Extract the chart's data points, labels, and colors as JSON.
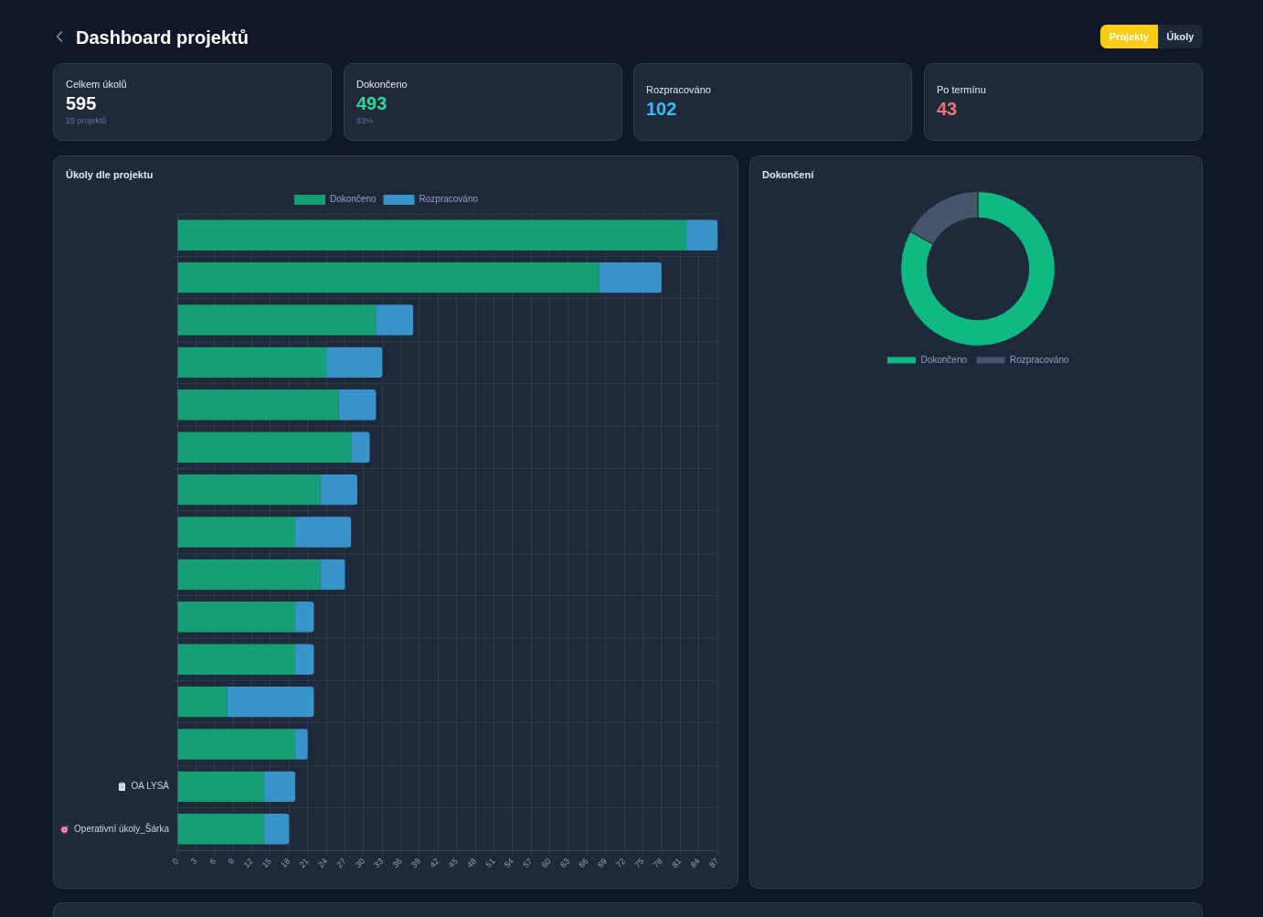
{
  "chart_data": [
    {
      "type": "other",
      "title": "Dashboard projektů",
      "annotations": [
        "Projekty",
        "Úkoly"
      ]
    },
    {
      "type": "other",
      "title": "Celkem úkolů",
      "annotations": [
        "595",
        "25 projektů"
      ]
    },
    {
      "type": "other",
      "title": "Dokončeno",
      "annotations": [
        "493",
        "83%"
      ],
      "color": "#34d399"
    },
    {
      "type": "other",
      "title": "Rozpracováno",
      "annotations": [
        "102"
      ],
      "color": "#38bdf8"
    },
    {
      "type": "other",
      "title": "Po termínu",
      "annotations": [
        "43"
      ],
      "color": "#f87171"
    },
    {
      "type": "bar",
      "title": "Úkoly dle projektu",
      "orientation": "horizontal",
      "stacked": true,
      "categories": [
        null,
        null,
        null,
        null,
        null,
        null,
        null,
        null,
        null,
        null,
        null,
        null,
        null,
        "OA LYSÁ",
        "Operativní úkoly_Šárka"
      ],
      "series": [
        {
          "name": "Dokončeno",
          "color": "#169e75",
          "values": [
            82,
            68,
            32,
            24,
            26,
            28,
            23,
            19,
            23,
            19,
            19,
            8,
            19,
            14,
            14
          ]
        },
        {
          "name": "Rozpracováno",
          "color": "#3893c9",
          "values": [
            5,
            10,
            6,
            9,
            6,
            3,
            6,
            9,
            4,
            3,
            3,
            14,
            2,
            5,
            4
          ]
        }
      ],
      "xlim": [
        0,
        87
      ],
      "xticks": [
        0,
        3,
        6,
        9,
        12,
        15,
        18,
        21,
        24,
        27,
        30,
        33,
        36,
        39,
        42,
        45,
        48,
        51,
        54,
        57,
        60,
        63,
        66,
        69,
        72,
        75,
        78,
        81,
        84,
        87
      ],
      "grid": true,
      "legend": "top"
    },
    {
      "type": "donut",
      "title": "Dokončení",
      "categories": [
        "Dokončeno",
        "Rozpracováno"
      ],
      "values": [
        83,
        17
      ],
      "colors": [
        "#10b981",
        "#475569"
      ],
      "legend": "bottom"
    }
  ]
}
